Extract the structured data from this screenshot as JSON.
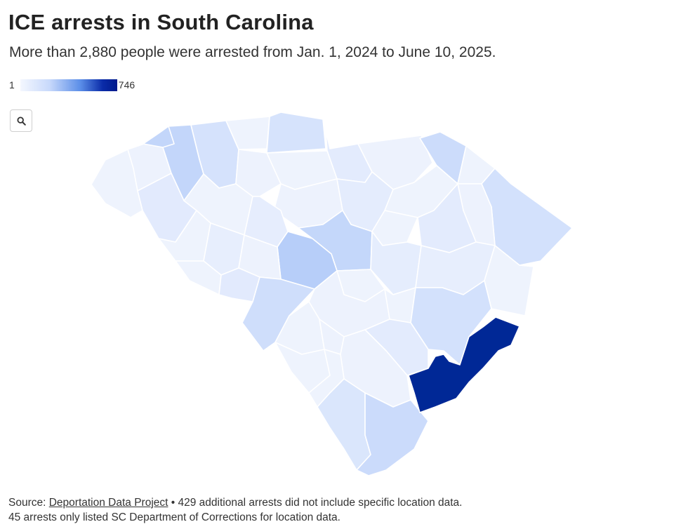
{
  "header": {
    "title": "ICE arrests in South Carolina",
    "subtitle": "More than 2,880 people were arrested from Jan. 1, 2024 to June 10, 2025."
  },
  "legend": {
    "min_label": "1",
    "max_label": "746",
    "min_color": "#f4f7fe",
    "max_color": "#001a8c"
  },
  "controls": {
    "zoom_icon": "search-icon"
  },
  "map": {
    "region": "South Carolina",
    "highlight_color": "#002896"
  },
  "footer": {
    "source_prefix": "Source: ",
    "source_link": "Deportation Data Project",
    "source_rest": " • 429 additional arrests did not include specific location data.",
    "line2": "45 arrests only listed SC Department of Corrections for location data."
  }
}
